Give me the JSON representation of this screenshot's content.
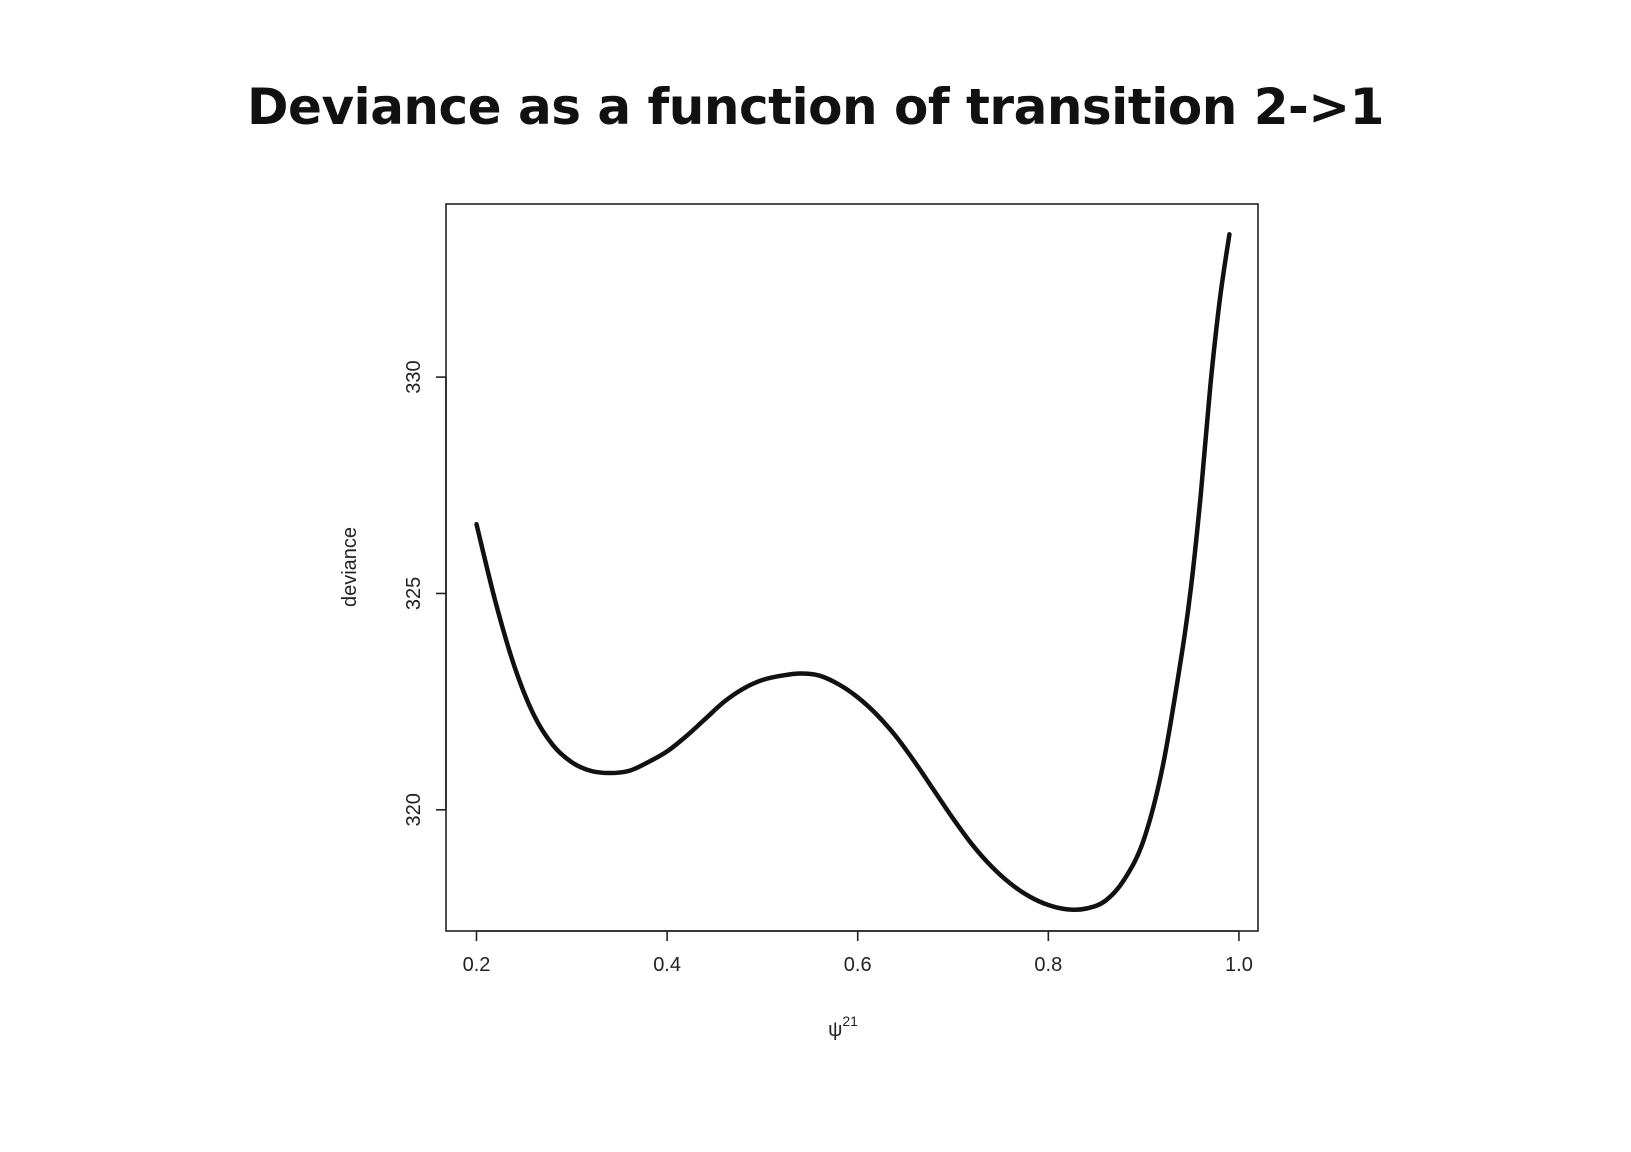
{
  "chart_data": {
    "type": "line",
    "title": "Deviance as a function of transition 2->1",
    "xlabel_base": "ψ",
    "xlabel_sup": "21",
    "ylabel": "deviance",
    "xlim": [
      0.168,
      1.02
    ],
    "ylim": [
      317.2,
      334.0
    ],
    "xticks": [
      0.2,
      0.4,
      0.6,
      0.8,
      1.0
    ],
    "xtick_labels": [
      "0.2",
      "0.4",
      "0.6",
      "0.8",
      "1.0"
    ],
    "yticks": [
      320,
      325,
      330
    ],
    "ytick_labels": [
      "320",
      "325",
      "330"
    ],
    "grid": false,
    "line_color": "#111111",
    "series": [
      {
        "x": [
          0.2,
          0.22,
          0.24,
          0.26,
          0.28,
          0.3,
          0.32,
          0.34,
          0.36,
          0.38,
          0.4,
          0.42,
          0.44,
          0.46,
          0.48,
          0.5,
          0.52,
          0.54,
          0.56,
          0.58,
          0.6,
          0.62,
          0.64,
          0.66,
          0.68,
          0.7,
          0.72,
          0.74,
          0.76,
          0.78,
          0.8,
          0.82,
          0.84,
          0.86,
          0.88,
          0.9,
          0.92,
          0.94,
          0.95,
          0.96,
          0.97,
          0.98,
          0.99
        ],
        "y": [
          326.6,
          324.8,
          323.3,
          322.2,
          321.5,
          321.1,
          320.9,
          320.85,
          320.9,
          321.1,
          321.35,
          321.7,
          322.1,
          322.5,
          322.8,
          323.0,
          323.1,
          323.15,
          323.1,
          322.9,
          322.6,
          322.2,
          321.7,
          321.1,
          320.45,
          319.8,
          319.2,
          318.7,
          318.3,
          318.0,
          317.8,
          317.7,
          317.72,
          317.9,
          318.4,
          319.3,
          321.0,
          323.6,
          325.2,
          327.3,
          329.8,
          331.8,
          333.3
        ]
      }
    ]
  }
}
